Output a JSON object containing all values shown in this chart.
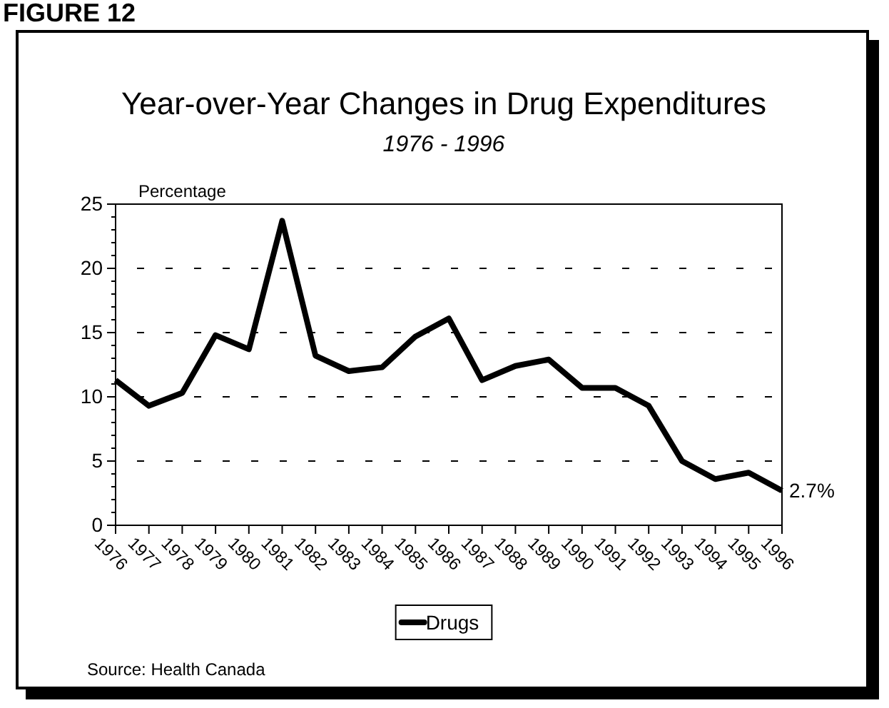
{
  "chart_data": {
    "type": "line",
    "title": "Year-over-Year Changes in Drug Expenditures",
    "subtitle": "1976 - 1996",
    "ylabel": "Percentage",
    "categories": [
      "1976",
      "1977",
      "1978",
      "1979",
      "1980",
      "1981",
      "1982",
      "1983",
      "1984",
      "1985",
      "1986",
      "1987",
      "1988",
      "1989",
      "1990",
      "1991",
      "1992",
      "1993",
      "1994",
      "1995",
      "1996"
    ],
    "series": [
      {
        "name": "Drugs",
        "color": "#000000",
        "values": [
          11.3,
          9.3,
          10.3,
          14.8,
          13.7,
          23.7,
          13.2,
          12.0,
          12.3,
          14.7,
          16.1,
          11.3,
          12.4,
          12.9,
          10.7,
          10.7,
          9.3,
          5.0,
          3.6,
          4.1,
          2.7
        ]
      }
    ],
    "ylim": [
      0,
      25
    ],
    "yticks": [
      0,
      {
        "value": 1,
        "label": null
      },
      {
        "value": 2,
        "label": null
      },
      {
        "value": 3,
        "label": null
      },
      {
        "value": 4,
        "label": null
      },
      5,
      {
        "value": 6,
        "label": null
      },
      {
        "value": 7,
        "label": null
      },
      {
        "value": 8,
        "label": null
      },
      {
        "value": 9,
        "label": null
      },
      10,
      {
        "value": 11,
        "label": null
      },
      {
        "value": 12,
        "label": null
      },
      {
        "value": 13,
        "label": null
      },
      {
        "value": 14,
        "label": null
      },
      15,
      {
        "value": 16,
        "label": null
      },
      {
        "value": 17,
        "label": null
      },
      {
        "value": 18,
        "label": null
      },
      {
        "value": 19,
        "label": null
      },
      20,
      {
        "value": 21,
        "label": null
      },
      {
        "value": 22,
        "label": null
      },
      {
        "value": 23,
        "label": null
      },
      {
        "value": 24,
        "label": null
      },
      25
    ],
    "grid": "y",
    "legend": "bottom",
    "marker": "none",
    "line_style": "solid",
    "annotations": [
      "FIGURE 12",
      "Source: Health Canada",
      {
        "text": "2.7%",
        "x": "1996",
        "y": 2.7
      }
    ]
  }
}
